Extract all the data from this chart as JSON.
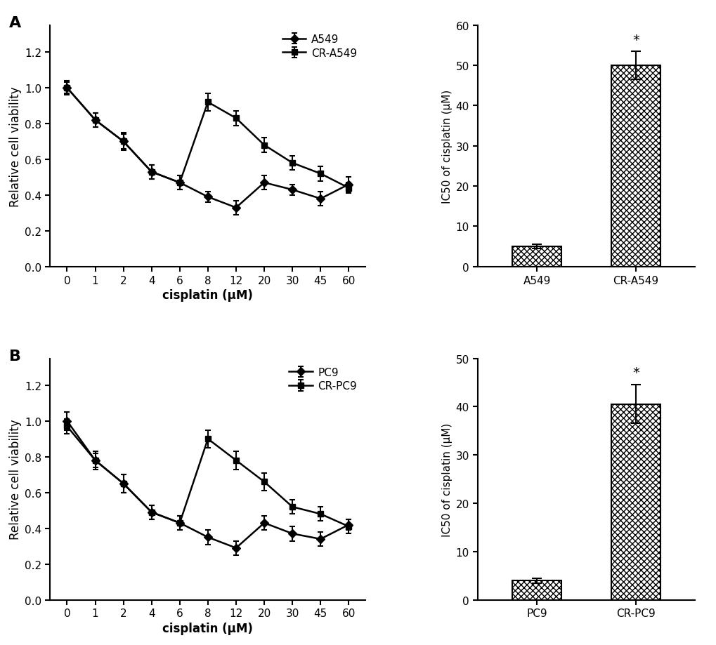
{
  "panel_A": {
    "x_labels": [
      "0",
      "1",
      "2",
      "4",
      "6",
      "8",
      "12",
      "20",
      "30",
      "45",
      "60"
    ],
    "A549_y": [
      1.0,
      0.82,
      0.7,
      0.53,
      0.47,
      0.39,
      0.33,
      0.47,
      0.43,
      0.38,
      0.46
    ],
    "A549_err": [
      0.03,
      0.04,
      0.04,
      0.04,
      0.04,
      0.03,
      0.04,
      0.04,
      0.03,
      0.04,
      0.04
    ],
    "CRA549_y": [
      1.0,
      0.82,
      0.7,
      0.53,
      0.47,
      0.92,
      0.83,
      0.68,
      0.58,
      0.52,
      0.44
    ],
    "CRA549_err": [
      0.04,
      0.04,
      0.05,
      0.04,
      0.04,
      0.05,
      0.04,
      0.04,
      0.04,
      0.04,
      0.03
    ],
    "xlabel": "cisplatin (μM)",
    "ylabel": "Relative cell viability",
    "line1_label": "A549",
    "line2_label": "CR-A549",
    "ylim": [
      0.0,
      1.35
    ],
    "yticks": [
      0.0,
      0.2,
      0.4,
      0.6,
      0.8,
      1.0,
      1.2
    ]
  },
  "panel_B": {
    "x_labels": [
      "0",
      "1",
      "2",
      "4",
      "6",
      "8",
      "12",
      "20",
      "30",
      "45",
      "60"
    ],
    "PC9_y": [
      1.0,
      0.78,
      0.65,
      0.49,
      0.43,
      0.35,
      0.29,
      0.43,
      0.37,
      0.34,
      0.42
    ],
    "PC9_err": [
      0.05,
      0.04,
      0.05,
      0.04,
      0.04,
      0.04,
      0.04,
      0.04,
      0.04,
      0.04,
      0.03
    ],
    "CRPC9_y": [
      0.97,
      0.78,
      0.65,
      0.49,
      0.43,
      0.9,
      0.78,
      0.66,
      0.52,
      0.48,
      0.41
    ],
    "CRPC9_err": [
      0.04,
      0.05,
      0.05,
      0.04,
      0.04,
      0.05,
      0.05,
      0.05,
      0.04,
      0.04,
      0.04
    ],
    "xlabel": "cisplatin (μM)",
    "ylabel": "Relative cell viability",
    "line1_label": "PC9",
    "line2_label": "CR-PC9",
    "ylim": [
      0.0,
      1.35
    ],
    "yticks": [
      0.0,
      0.2,
      0.4,
      0.6,
      0.8,
      1.0,
      1.2
    ]
  },
  "panel_bar_A": {
    "categories": [
      "A549",
      "CR-A549"
    ],
    "values": [
      5.0,
      50.0
    ],
    "errors": [
      0.5,
      3.5
    ],
    "ylabel": "IC50 of cisplatin (μM)",
    "ylim": [
      0,
      60
    ],
    "yticks": [
      0,
      10,
      20,
      30,
      40,
      50,
      60
    ]
  },
  "panel_bar_B": {
    "categories": [
      "PC9",
      "CR-PC9"
    ],
    "values": [
      4.0,
      40.5
    ],
    "errors": [
      0.5,
      4.0
    ],
    "ylabel": "IC50 of cisplatin (μM)",
    "ylim": [
      0,
      50
    ],
    "yticks": [
      0,
      10,
      20,
      30,
      40,
      50
    ]
  }
}
